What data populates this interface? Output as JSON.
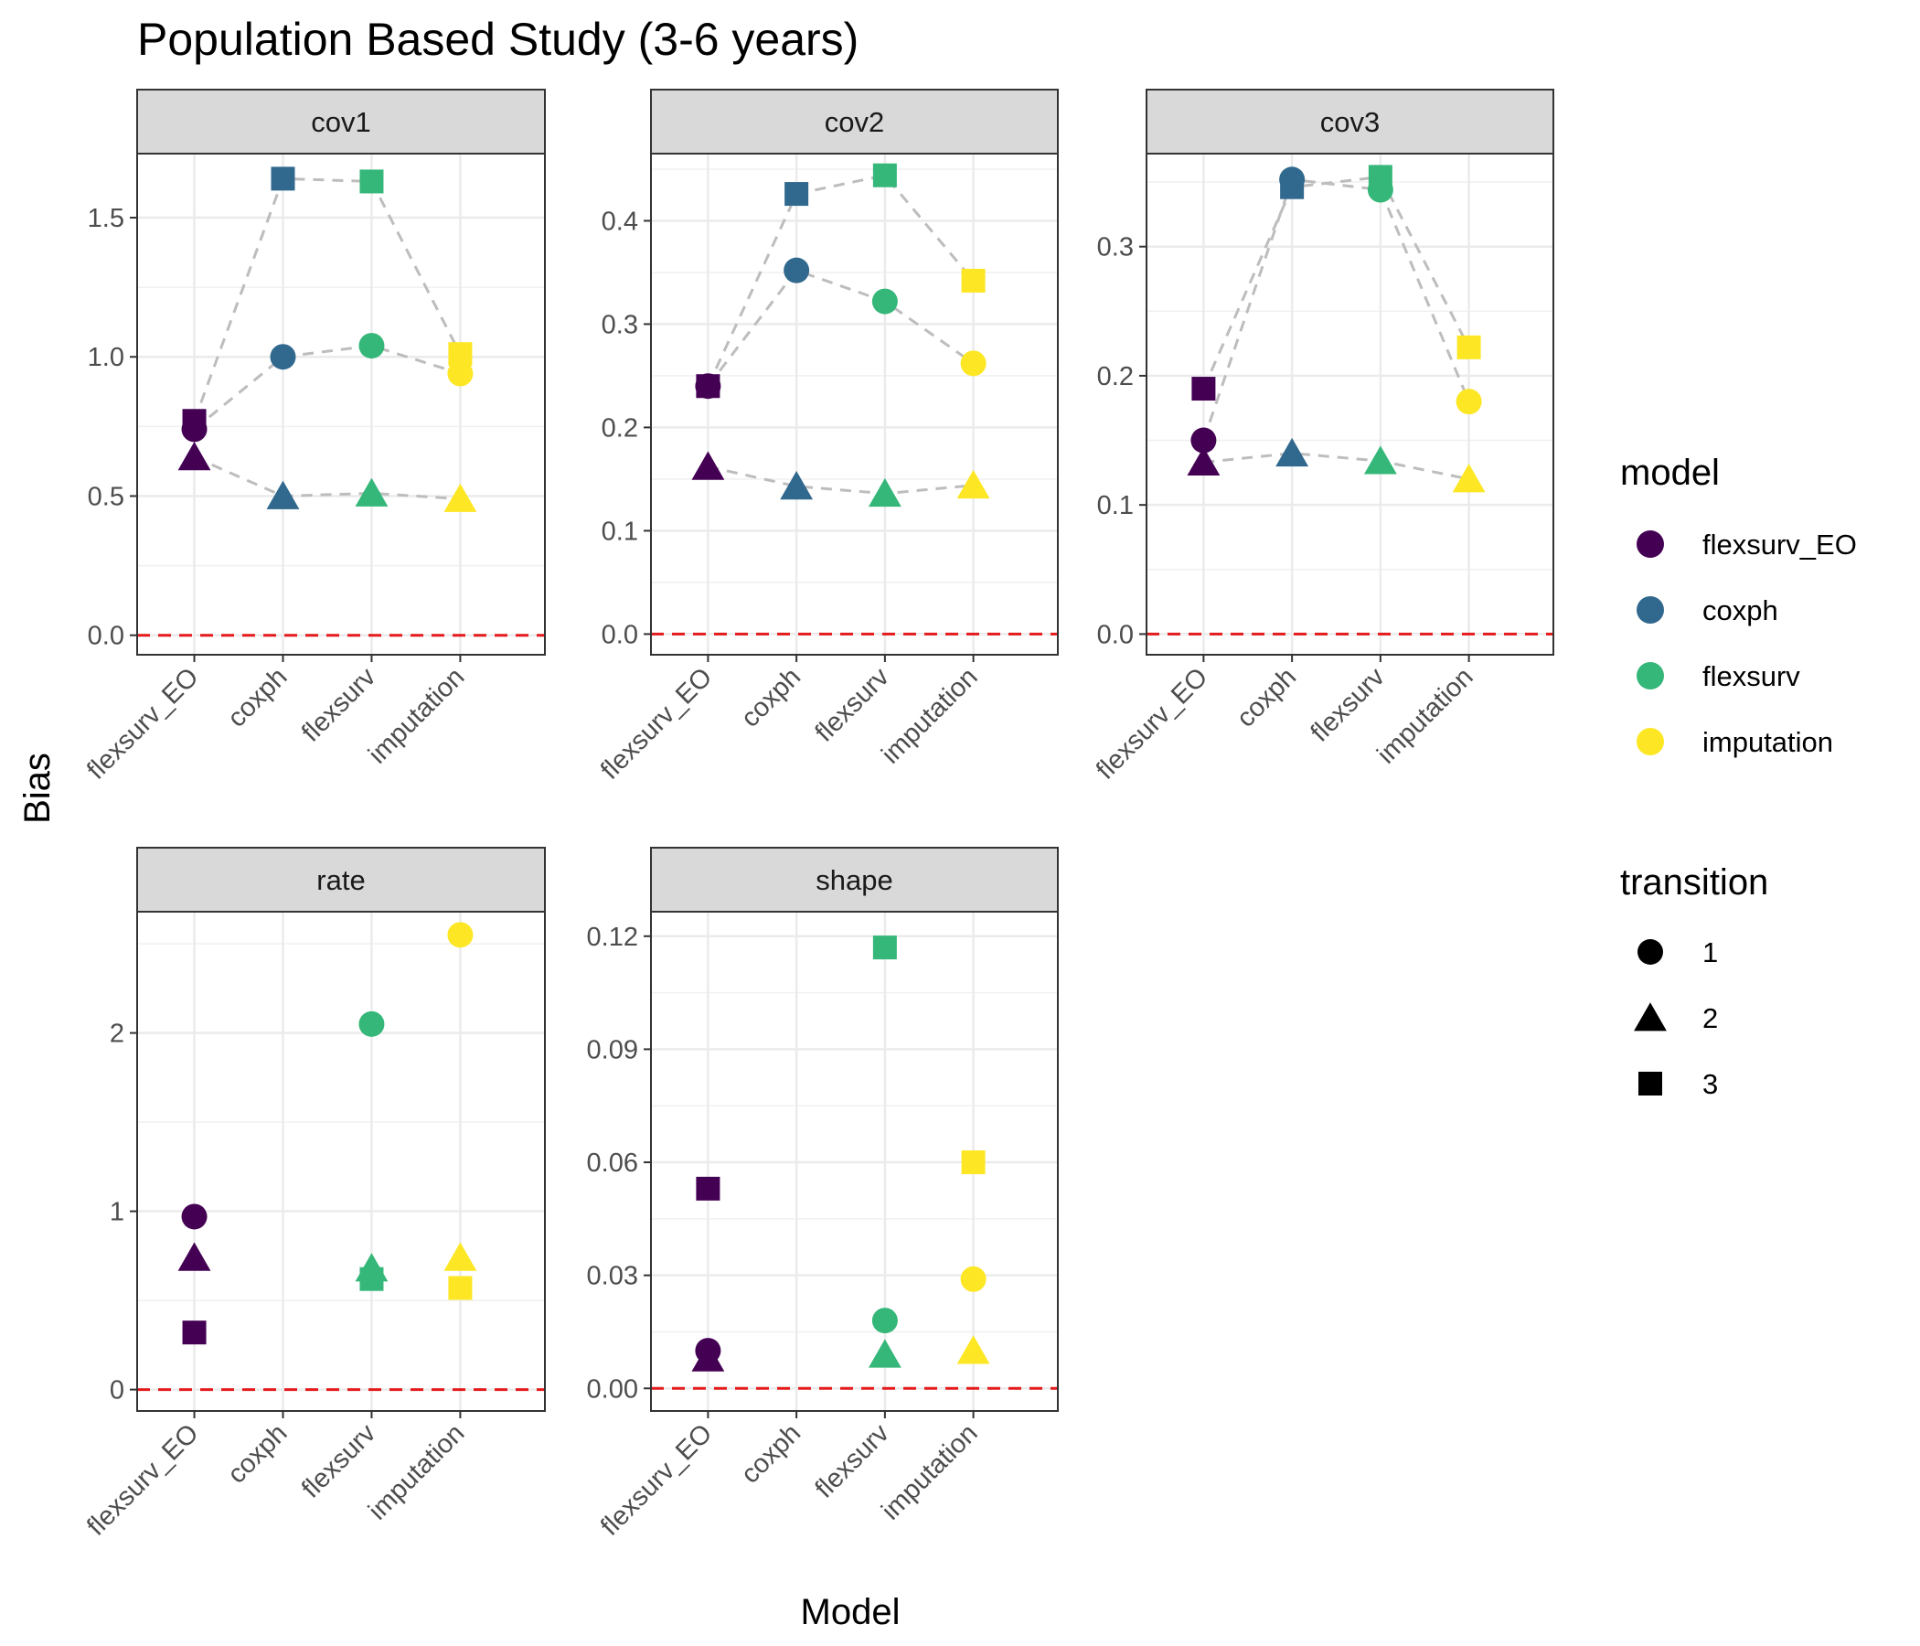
{
  "chart_data": {
    "type": "scatter",
    "title": "Population Based Study (3-6 years)",
    "xlabel": "Model",
    "ylabel": "Bias",
    "categories": [
      "flexsurv_EO",
      "coxph",
      "flexsurv",
      "imputation"
    ],
    "reference_line": {
      "y": 0,
      "color": "#e41a1c",
      "style": "dashed"
    },
    "connector_lines": {
      "color": "#bdbdbd",
      "style": "dashed"
    },
    "legend_model": {
      "title": "model",
      "items": [
        {
          "label": "flexsurv_EO",
          "color": "#440154"
        },
        {
          "label": "coxph",
          "color": "#31688e"
        },
        {
          "label": "flexsurv",
          "color": "#35b779"
        },
        {
          "label": "imputation",
          "color": "#fde725"
        }
      ]
    },
    "legend_transition": {
      "title": "transition",
      "items": [
        {
          "label": "1",
          "shape": "circle"
        },
        {
          "label": "2",
          "shape": "triangle"
        },
        {
          "label": "3",
          "shape": "square"
        }
      ]
    },
    "panels": [
      {
        "name": "cov1",
        "ylim": [
          -0.07,
          1.73
        ],
        "yticks": [
          0.0,
          0.5,
          1.0,
          1.5
        ],
        "ytick_labels": [
          "0.0",
          "0.5",
          "1.0",
          "1.5"
        ],
        "connect": true,
        "series": [
          {
            "transition": "1",
            "values": [
              0.74,
              1.0,
              1.04,
              0.94
            ]
          },
          {
            "transition": "2",
            "values": [
              0.64,
              0.5,
              0.51,
              0.49
            ]
          },
          {
            "transition": "3",
            "values": [
              0.77,
              1.64,
              1.63,
              1.01
            ]
          }
        ]
      },
      {
        "name": "cov2",
        "ylim": [
          -0.02,
          0.465
        ],
        "yticks": [
          0.0,
          0.1,
          0.2,
          0.3,
          0.4
        ],
        "ytick_labels": [
          "0.0",
          "0.1",
          "0.2",
          "0.3",
          "0.4"
        ],
        "connect": true,
        "series": [
          {
            "transition": "1",
            "values": [
              0.24,
              0.352,
              0.322,
              0.262
            ]
          },
          {
            "transition": "2",
            "values": [
              0.162,
              0.143,
              0.136,
              0.144
            ]
          },
          {
            "transition": "3",
            "values": [
              0.24,
              0.426,
              0.444,
              0.342
            ]
          }
        ]
      },
      {
        "name": "cov3",
        "ylim": [
          -0.016,
          0.372
        ],
        "yticks": [
          0.0,
          0.1,
          0.2,
          0.3
        ],
        "ytick_labels": [
          "0.0",
          "0.1",
          "0.2",
          "0.3"
        ],
        "connect": true,
        "series": [
          {
            "transition": "1",
            "values": [
              0.15,
              0.352,
              0.344,
              0.18
            ]
          },
          {
            "transition": "2",
            "values": [
              0.133,
              0.14,
              0.134,
              0.12
            ]
          },
          {
            "transition": "3",
            "values": [
              0.19,
              0.346,
              0.354,
              0.222
            ]
          }
        ]
      },
      {
        "name": "rate",
        "ylim": [
          -0.12,
          2.68
        ],
        "yticks": [
          0,
          1,
          2
        ],
        "ytick_labels": [
          "0",
          "1",
          "2"
        ],
        "connect": false,
        "series": [
          {
            "transition": "1",
            "values": [
              0.97,
              null,
              2.05,
              2.55
            ]
          },
          {
            "transition": "2",
            "values": [
              0.74,
              null,
              0.68,
              0.74
            ]
          },
          {
            "transition": "3",
            "values": [
              0.32,
              null,
              0.62,
              0.57
            ]
          }
        ]
      },
      {
        "name": "shape",
        "ylim": [
          -0.006,
          0.1265
        ],
        "yticks": [
          0.0,
          0.03,
          0.06,
          0.09,
          0.12
        ],
        "ytick_labels": [
          "0.00",
          "0.03",
          "0.06",
          "0.09",
          "0.12"
        ],
        "connect": false,
        "series": [
          {
            "transition": "1",
            "values": [
              0.01,
              null,
              0.018,
              0.029
            ]
          },
          {
            "transition": "2",
            "values": [
              0.008,
              null,
              0.009,
              0.01
            ]
          },
          {
            "transition": "3",
            "values": [
              0.053,
              null,
              0.117,
              0.06
            ]
          }
        ]
      }
    ]
  }
}
